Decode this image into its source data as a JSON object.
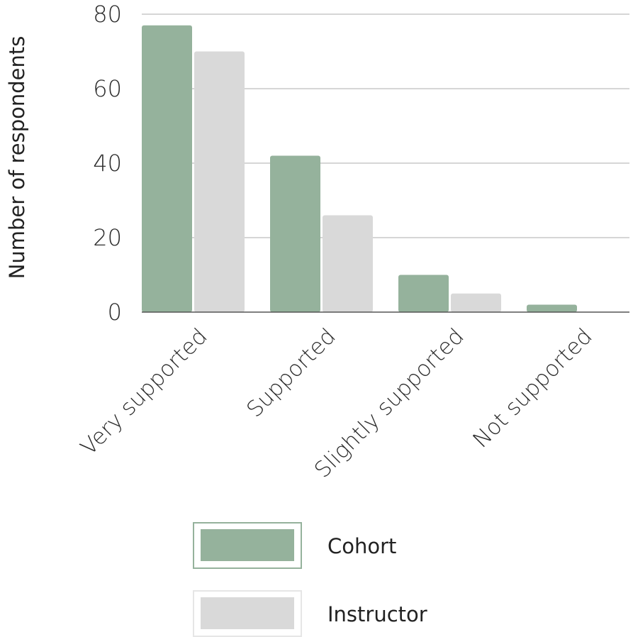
{
  "chart_data": {
    "type": "bar",
    "categories": [
      "Very supported",
      "Supported",
      "Slightly supported",
      "Not supported"
    ],
    "series": [
      {
        "name": "Cohort",
        "values": [
          77,
          42,
          10,
          2
        ],
        "color": "#95b29c"
      },
      {
        "name": "Instructor",
        "values": [
          70,
          26,
          5,
          0
        ],
        "color": "#d9d9d9"
      }
    ],
    "ylabel": "Number of respondents",
    "xlabel": "",
    "ylim": [
      0,
      80
    ],
    "yticks": [
      0,
      20,
      40,
      60,
      80
    ],
    "grid": true,
    "legend_position": "bottom"
  },
  "colors": {
    "gridline": "#bdbdbd",
    "baseline": "#555555",
    "legend_border_cohort": "#95b29c",
    "legend_border_instructor": "#e6e6e6"
  }
}
